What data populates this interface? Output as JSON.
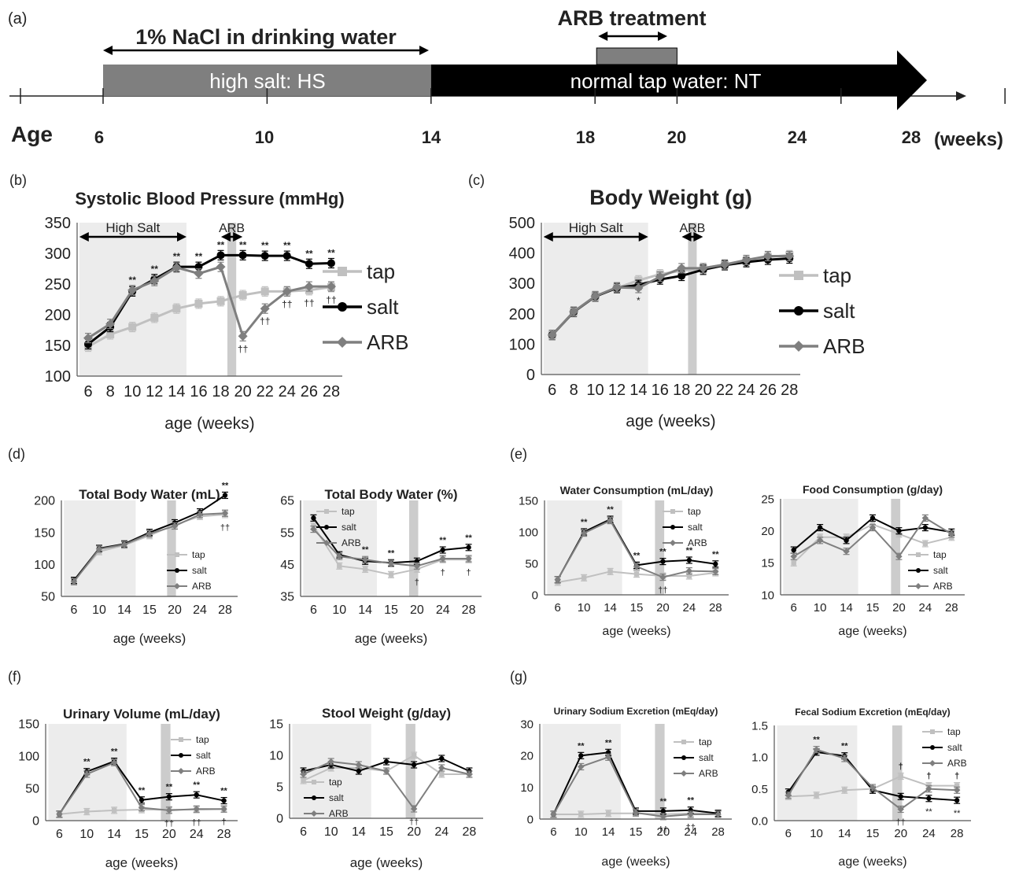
{
  "timeline": {
    "panel_label": "(a)",
    "salt_note": "1% NaCl in drinking water",
    "arb_note": "ARB treatment",
    "hs_label": "high salt: HS",
    "nt_label": "normal tap water: NT",
    "age_label": "Age",
    "ticks": [
      "6",
      "10",
      "14",
      "18",
      "20",
      "24",
      "28"
    ],
    "unit": "(weeks)",
    "tick_weeks": [
      6,
      10,
      14,
      18,
      20,
      24,
      28
    ],
    "hs_range": [
      6,
      14
    ],
    "arb_range": [
      18,
      20
    ],
    "hs_color": "#7f7f7f",
    "nt_color": "#000000"
  },
  "colors": {
    "tap": "#c0c0c0",
    "salt": "#000000",
    "ARB": "#7f7f7f",
    "shade": "#ececec",
    "arb_band": "#cccccc"
  },
  "chart_data": [
    {
      "id": "b",
      "panel_label": "(b)",
      "type": "line",
      "title": "Systolic Blood Pressure (mmHg)",
      "xlabel": "age (weeks)",
      "ylabel": "",
      "x": [
        "6",
        "8",
        "10",
        "12",
        "14",
        "16",
        "18",
        "20",
        "22",
        "24",
        "26",
        "28"
      ],
      "ylim": [
        100,
        350
      ],
      "yticks": [
        "100",
        "150",
        "200",
        "250",
        "300",
        "350"
      ],
      "shade_range": [
        0,
        4
      ],
      "arb_range": [
        6,
        7
      ],
      "band_labels": [
        "High Salt",
        "ARB"
      ],
      "legend_position": "right",
      "legend": [
        "tap",
        "salt",
        "ARB"
      ],
      "series": [
        {
          "name": "tap",
          "values": [
            148,
            168,
            180,
            195,
            210,
            218,
            222,
            232,
            238,
            238,
            240,
            245
          ]
        },
        {
          "name": "salt",
          "values": [
            152,
            180,
            238,
            258,
            278,
            278,
            297,
            297,
            296,
            296,
            283,
            284
          ]
        },
        {
          "name": "ARB",
          "values": [
            162,
            185,
            240,
            255,
            277,
            267,
            278,
            165,
            210,
            238,
            246,
            246
          ]
        }
      ],
      "annotations": {
        "above": [
          "",
          "",
          "**",
          "**",
          "**",
          "**",
          "**",
          "**",
          "**",
          "**",
          "**",
          "**"
        ],
        "below": [
          "",
          "",
          "",
          "",
          "",
          "",
          "",
          "††",
          "††",
          "††",
          "††",
          "††"
        ]
      }
    },
    {
      "id": "c",
      "panel_label": "(c)",
      "type": "line",
      "title": "Body Weight (g)",
      "xlabel": "age (weeks)",
      "ylabel": "",
      "x": [
        "6",
        "8",
        "10",
        "12",
        "14",
        "16",
        "18",
        "20",
        "22",
        "24",
        "26",
        "28"
      ],
      "ylim": [
        0,
        500
      ],
      "yticks": [
        "0",
        "100",
        "200",
        "300",
        "400",
        "500"
      ],
      "shade_range": [
        0,
        4
      ],
      "arb_range": [
        6,
        7
      ],
      "band_labels": [
        "High Salt",
        "ARB"
      ],
      "legend_position": "right",
      "legend": [
        "tap",
        "salt",
        "ARB"
      ],
      "series": [
        {
          "name": "tap",
          "values": [
            130,
            207,
            258,
            285,
            310,
            330,
            342,
            350,
            362,
            373,
            387,
            393
          ]
        },
        {
          "name": "salt",
          "values": [
            130,
            206,
            257,
            285,
            295,
            313,
            325,
            345,
            360,
            370,
            378,
            382
          ]
        },
        {
          "name": "ARB",
          "values": [
            130,
            207,
            258,
            287,
            285,
            322,
            350,
            350,
            362,
            377,
            390,
            390
          ]
        }
      ],
      "annotations": {
        "above": [
          "",
          "",
          "",
          "",
          "",
          "",
          "",
          "",
          "",
          "",
          "",
          ""
        ],
        "below": [
          "",
          "",
          "",
          "",
          "*",
          "",
          "",
          "",
          "",
          "",
          "",
          ""
        ]
      }
    },
    {
      "id": "d1",
      "panel_label": "(d)",
      "type": "line",
      "title": "Total Body Water (mL)",
      "xlabel": "age (weeks)",
      "ylabel": "",
      "x": [
        "6",
        "10",
        "14",
        "15",
        "20",
        "24",
        "28"
      ],
      "ylim": [
        50,
        200
      ],
      "yticks": [
        "50",
        "100",
        "150",
        "200"
      ],
      "shade_range": [
        0,
        2
      ],
      "arb_range": [
        4,
        4
      ],
      "band_labels": [],
      "legend_position": "inside bottom-right",
      "legend": [
        "tap",
        "salt",
        "ARB"
      ],
      "series": [
        {
          "name": "tap",
          "values": [
            75,
            120,
            130,
            145,
            162,
            175,
            178
          ]
        },
        {
          "name": "salt",
          "values": [
            75,
            125,
            132,
            150,
            165,
            182,
            208
          ]
        },
        {
          "name": "ARB",
          "values": [
            73,
            124,
            131,
            148,
            160,
            178,
            180
          ]
        }
      ],
      "annotations": {
        "above": [
          "",
          "",
          "",
          "",
          "",
          "",
          "**"
        ],
        "below": [
          "",
          "",
          "",
          "",
          "",
          "",
          "††"
        ]
      }
    },
    {
      "id": "d2",
      "panel_label": "",
      "type": "line",
      "title": "Total Body Water (%)",
      "xlabel": "age (weeks)",
      "ylabel": "",
      "x": [
        "6",
        "10",
        "14",
        "15",
        "20",
        "24",
        "28"
      ],
      "ylim": [
        35,
        65
      ],
      "yticks": [
        "35",
        "45",
        "55",
        "65"
      ],
      "shade_range": [
        0,
        2
      ],
      "arb_range": [
        4,
        4
      ],
      "band_labels": [],
      "legend_position": "inside top-right",
      "legend": [
        "tap",
        "salt",
        "ARB"
      ],
      "series": [
        {
          "name": "tap",
          "values": [
            57,
            44.5,
            43.5,
            41.8,
            43.5,
            46.5,
            46.5
          ]
        },
        {
          "name": "salt",
          "values": [
            59.5,
            48,
            46,
            45.5,
            46,
            49.5,
            50.3
          ]
        },
        {
          "name": "ARB",
          "values": [
            56,
            47.5,
            46.5,
            45.3,
            44.5,
            46.8,
            46.8
          ]
        }
      ],
      "annotations": {
        "above": [
          "",
          "",
          "**",
          "**",
          "",
          "**",
          "**"
        ],
        "below": [
          "",
          "",
          "",
          "",
          "†",
          "†",
          "†"
        ]
      }
    },
    {
      "id": "e1",
      "panel_label": "(e)",
      "type": "line",
      "title": "Water Consumption (mL/day)",
      "xlabel": "age (weeks)",
      "ylabel": "",
      "x": [
        "6",
        "10",
        "14",
        "15",
        "20",
        "24",
        "28"
      ],
      "ylim": [
        0,
        150
      ],
      "yticks": [
        "0",
        "50",
        "100",
        "150"
      ],
      "shade_range": [
        0,
        2
      ],
      "arb_range": [
        4,
        4
      ],
      "band_labels": [],
      "legend_position": "inside right",
      "legend": [
        "tap",
        "salt",
        "ARB"
      ],
      "series": [
        {
          "name": "tap",
          "values": [
            20,
            27,
            37,
            33,
            30,
            30,
            35
          ]
        },
        {
          "name": "salt",
          "values": [
            24,
            100,
            120,
            47,
            53,
            55,
            49
          ]
        },
        {
          "name": "ARB",
          "values": [
            24,
            98,
            118,
            45,
            28,
            38,
            37
          ]
        }
      ],
      "annotations": {
        "above": [
          "",
          "**",
          "**",
          "**",
          "**",
          "**",
          "**"
        ],
        "below": [
          "",
          "",
          "",
          "",
          "††",
          "",
          ""
        ]
      }
    },
    {
      "id": "e2",
      "panel_label": "",
      "type": "line",
      "title": "Food Consumption (g/day)",
      "xlabel": "age (weeks)",
      "ylabel": "",
      "x": [
        "6",
        "10",
        "14",
        "15",
        "20",
        "24",
        "28"
      ],
      "ylim": [
        10,
        25
      ],
      "yticks": [
        "10",
        "15",
        "20",
        "25"
      ],
      "shade_range": [
        0,
        2
      ],
      "arb_range": [
        4,
        4
      ],
      "band_labels": [],
      "legend_position": "inside bottom-right",
      "legend": [
        "tap",
        "salt",
        "ARB"
      ],
      "series": [
        {
          "name": "tap",
          "values": [
            15,
            19,
            19,
            21,
            19.5,
            18,
            19
          ]
        },
        {
          "name": "salt",
          "values": [
            17,
            20.5,
            18.5,
            22,
            20,
            20.5,
            19.8
          ]
        },
        {
          "name": "ARB",
          "values": [
            16,
            18.5,
            16.8,
            20.5,
            16,
            22,
            19.5
          ]
        }
      ],
      "annotations": {
        "above": [
          "",
          "",
          "",
          "",
          "",
          "",
          ""
        ],
        "below": [
          "",
          "",
          "",
          "",
          "",
          "",
          ""
        ]
      }
    },
    {
      "id": "f1",
      "panel_label": "(f)",
      "type": "line",
      "title": "Urinary Volume (mL/day)",
      "xlabel": "age (weeks)",
      "ylabel": "",
      "x": [
        "6",
        "10",
        "14",
        "15",
        "20",
        "24",
        "28"
      ],
      "ylim": [
        0,
        150
      ],
      "yticks": [
        "0",
        "50",
        "100",
        "150"
      ],
      "shade_range": [
        0,
        2
      ],
      "arb_range": [
        4,
        4
      ],
      "band_labels": [],
      "legend_position": "inside right",
      "legend": [
        "tap",
        "salt",
        "ARB"
      ],
      "series": [
        {
          "name": "tap",
          "values": [
            10,
            14,
            16,
            17,
            17,
            17,
            18
          ]
        },
        {
          "name": "salt",
          "values": [
            10,
            76,
            92,
            32,
            37,
            40,
            31
          ]
        },
        {
          "name": "ARB",
          "values": [
            10,
            72,
            90,
            20,
            16,
            18,
            18
          ]
        }
      ],
      "annotations": {
        "above": [
          "",
          "**",
          "**",
          "**",
          "**",
          "**",
          "**"
        ],
        "below": [
          "",
          "",
          "",
          "",
          "††",
          "††",
          "†"
        ]
      }
    },
    {
      "id": "f2",
      "panel_label": "",
      "type": "line",
      "title": "Stool Weight (g/day)",
      "xlabel": "age (weeks)",
      "ylabel": "",
      "x": [
        "6",
        "10",
        "14",
        "15",
        "20",
        "24",
        "28"
      ],
      "ylim": [
        0,
        15
      ],
      "yticks": [
        "0",
        "5",
        "10",
        "15"
      ],
      "shade_range": [
        0,
        2
      ],
      "arb_range": [
        4,
        4
      ],
      "band_labels": [],
      "legend_position": "inside bottom",
      "legend": [
        "tap",
        "salt",
        "ARB"
      ],
      "series": [
        {
          "name": "tap",
          "values": [
            6,
            8,
            8,
            7.5,
            10,
            7,
            7
          ]
        },
        {
          "name": "salt",
          "values": [
            7.5,
            8.5,
            7.5,
            9,
            8.5,
            9.5,
            7.5
          ]
        },
        {
          "name": "ARB",
          "values": [
            7,
            9,
            8.5,
            7.5,
            1.5,
            8,
            7
          ]
        }
      ],
      "annotations": {
        "above": [
          "",
          "",
          "",
          "",
          "",
          "",
          ""
        ],
        "below": [
          "",
          "",
          "",
          "",
          "††",
          "",
          ""
        ]
      }
    },
    {
      "id": "g1",
      "panel_label": "(g)",
      "type": "line",
      "title": "Urinary Sodium Excretion (mEq/day)",
      "xlabel": "age (weeks)",
      "ylabel": "",
      "x": [
        "6",
        "10",
        "14",
        "15",
        "20",
        "24",
        "28"
      ],
      "ylim": [
        0,
        30
      ],
      "yticks": [
        "0",
        "10",
        "20",
        "30"
      ],
      "shade_range": [
        0,
        2
      ],
      "arb_range": [
        4,
        4
      ],
      "band_labels": [],
      "legend_position": "inside right",
      "legend": [
        "tap",
        "salt",
        "ARB"
      ],
      "series": [
        {
          "name": "tap",
          "values": [
            1.5,
            1.5,
            1.8,
            1.8,
            1.5,
            1.8,
            1.8
          ]
        },
        {
          "name": "salt",
          "values": [
            1.5,
            20,
            21,
            2.5,
            2.5,
            2.8,
            1.8
          ]
        },
        {
          "name": "ARB",
          "values": [
            1.5,
            16.5,
            19.5,
            2,
            0.8,
            1.5,
            1.5
          ]
        }
      ],
      "annotations": {
        "above": [
          "",
          "**",
          "**",
          "",
          "**",
          "**",
          ""
        ],
        "below": [
          "",
          "",
          "",
          "",
          "††",
          "††",
          ""
        ]
      }
    },
    {
      "id": "g2",
      "panel_label": "",
      "type": "line",
      "title": "Fecal Sodium Excretion (mEq/day)",
      "xlabel": "age (weeks)",
      "ylabel": "",
      "x": [
        "6",
        "10",
        "14",
        "15",
        "20",
        "24",
        "28"
      ],
      "ylim": [
        0,
        1.5
      ],
      "yticks": [
        "0.0",
        "0.5",
        "1.0",
        "1.5"
      ],
      "shade_range": [
        0,
        2
      ],
      "arb_range": [
        4,
        4
      ],
      "band_labels": [],
      "legend_position": "inside top-right",
      "legend": [
        "tap",
        "salt",
        "ARB"
      ],
      "series": [
        {
          "name": "tap",
          "values": [
            0.38,
            0.4,
            0.48,
            0.5,
            0.7,
            0.55,
            0.55
          ]
        },
        {
          "name": "salt",
          "values": [
            0.45,
            1.08,
            1.02,
            0.48,
            0.38,
            0.35,
            0.32
          ]
        },
        {
          "name": "ARB",
          "values": [
            0.4,
            1.12,
            0.98,
            0.52,
            0.18,
            0.5,
            0.48
          ]
        }
      ],
      "annotations": {
        "above": [
          "",
          "**",
          "**",
          "",
          "†",
          "†",
          "†"
        ],
        "below": [
          "",
          "",
          "",
          "",
          "††",
          "**",
          "**"
        ]
      }
    }
  ]
}
